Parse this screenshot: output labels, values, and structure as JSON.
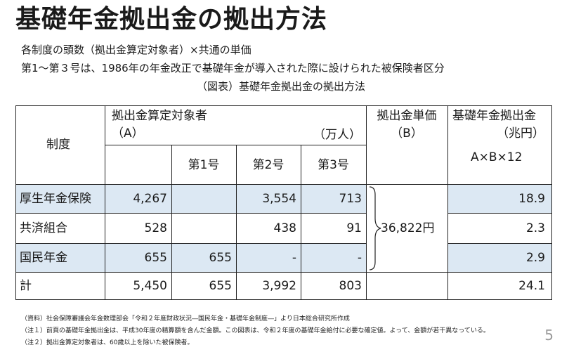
{
  "title": "基礎年金拠出金の拠出方法",
  "subtitle1": "各制度の頭数（拠出金算定対象者）×共通の単価",
  "subtitle2": "第1～第３号は、1986年の年金改正で基礎年金が導入された際に設けられた被保険者区分",
  "caption": "（図表）基礎年金拠出金の拠出方法",
  "table": {
    "header_seido": "制度",
    "header_target": "拠出金算定対象者",
    "header_target_a": "（A）",
    "header_unit_man": "（万人）",
    "header_no1": "第1号",
    "header_no2": "第2号",
    "header_no3": "第3号",
    "header_price": "拠出金単価",
    "header_price_b": "（B）",
    "header_total": "基礎年金拠出金",
    "header_total_unit": "（兆円）",
    "header_formula": "A×B×12",
    "shared_price": "36,822円",
    "rows": [
      {
        "name": "厚生年金保険",
        "a": "4,267",
        "no1": "",
        "no2": "3,554",
        "no3": "713",
        "total": "18.9"
      },
      {
        "name": "共済組合",
        "a": "528",
        "no1": "",
        "no2": "438",
        "no3": "91",
        "total": "2.3"
      },
      {
        "name": "国民年金",
        "a": "655",
        "no1": "655",
        "no2": "-",
        "no3": "-",
        "total": "2.9"
      },
      {
        "name": "計",
        "a": "5,450",
        "no1": "655",
        "no2": "3,992",
        "no3": "803",
        "total": "24.1"
      }
    ]
  },
  "notes": {
    "source": "（資料）社会保障審議会年金数理部会「令和２年度財政状況―国民年金・基礎年金制度―」より日本総合研究所作成",
    "note1": "（注１）前頁の基礎年金拠出金は、平成30年度の精算額を含んだ金額。この図表は、令和２年度の基礎年金給付に必要な確定値。よって、金額が若干異なっている。",
    "note2": "（注２）拠出金算定対象者は、60歳以上を除いた被保険者。"
  },
  "page_number": "5",
  "colors": {
    "row_shade": "#dce8f3",
    "line": "#222222",
    "page_number": "#999999"
  }
}
